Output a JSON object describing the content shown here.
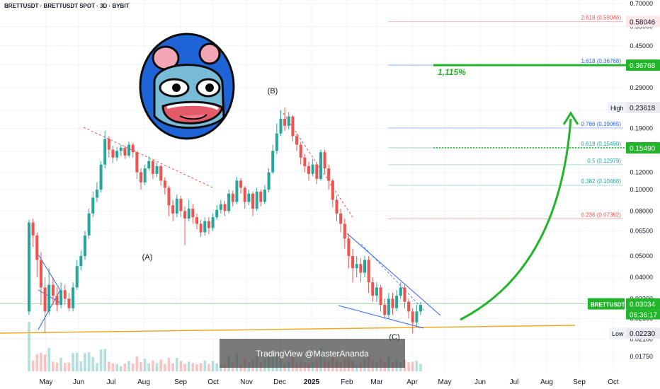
{
  "header": {
    "title": "BRETTUSDT · BRETTUSDT SPOT · 3D · BYBIT"
  },
  "watermark": "TradingView @MasterAnanda",
  "colors": {
    "up": "#26a69a",
    "down": "#ef5350",
    "arrow": "#22b42a",
    "support": "#f5a623",
    "channel": "#2962ff"
  },
  "chart_data": {
    "type": "candlestick",
    "y_scale": "log",
    "y_ticks": [
      "0.70000",
      "0.55000",
      "0.45000",
      "0.37000",
      "0.29000",
      "0.23000",
      "0.19000",
      "0.15000",
      "0.12000",
      "0.10000",
      "0.08000",
      "0.06500",
      "0.05000",
      "0.04000",
      "0.03200",
      "0.02600",
      "0.02100",
      "0.01750"
    ],
    "y_tick_values": [
      0.7,
      0.55,
      0.45,
      0.37,
      0.29,
      0.23,
      0.19,
      0.15,
      0.12,
      0.1,
      0.08,
      0.065,
      0.05,
      0.04,
      0.032,
      0.026,
      0.021,
      0.0175
    ],
    "x_ticks": [
      "May",
      "Jun",
      "Jul",
      "Aug",
      "Sep",
      "Oct",
      "Nov",
      "Dec",
      "2025",
      "Feb",
      "Mar",
      "Apr",
      "May",
      "Jun",
      "Jul",
      "Aug",
      "Sep",
      "Oct"
    ],
    "fib_levels": [
      {
        "label": "2.618 (0.58046)",
        "value": 0.58046,
        "color": "#ef5350"
      },
      {
        "label": "1.618 (0.36768)",
        "value": 0.36768,
        "color": "#2962ff"
      },
      {
        "label": "0.786 (0.19065)",
        "value": 0.19065,
        "color": "#2962ff"
      },
      {
        "label": "0.618 (0.15490)",
        "value": 0.1549,
        "color": "#26a69a"
      },
      {
        "label": "0.5 (0.12979)",
        "value": 0.12979,
        "color": "#26a69a"
      },
      {
        "label": "0.382 (0.10468)",
        "value": 0.10468,
        "color": "#26a69a"
      },
      {
        "label": "0.236 (0.07362)",
        "value": 0.07362,
        "color": "#ef5350"
      }
    ],
    "price_badges": [
      {
        "text": "0.58046",
        "value": 0.58046,
        "bg": "#fde7e9",
        "fg": "#131722"
      },
      {
        "text": "0.36768",
        "value": 0.36768,
        "bg": "#22b42a",
        "fg": "#ffffff"
      },
      {
        "text": "0.23618",
        "value": 0.23618,
        "bg": "#e8eaf0",
        "fg": "#131722"
      },
      {
        "text": "0.15490",
        "value": 0.1549,
        "bg": "#22b42a",
        "fg": "#ffffff"
      },
      {
        "text": "0.03034",
        "value": 0.03034,
        "bg": "#22b42a",
        "fg": "#ffffff"
      },
      {
        "text": "0.02230",
        "value": 0.0223,
        "bg": "#e8eaf0",
        "fg": "#131722"
      }
    ],
    "current": {
      "symbol": "BRETTUSDT",
      "price": "0.03034",
      "countdown": "06:36:17"
    },
    "high_label": "High",
    "low_label": "Low",
    "target_percent": "1,115%",
    "wave_labels": [
      "(A)",
      "(B)",
      "(C)"
    ],
    "candles": [
      [
        0.028,
        0.071,
        0.073,
        0.027
      ],
      [
        0.071,
        0.062,
        0.074,
        0.055
      ],
      [
        0.062,
        0.048,
        0.064,
        0.04
      ],
      [
        0.048,
        0.036,
        0.052,
        0.03
      ],
      [
        0.036,
        0.028,
        0.04,
        0.0223
      ],
      [
        0.028,
        0.037,
        0.044,
        0.027
      ],
      [
        0.037,
        0.033,
        0.04,
        0.03
      ],
      [
        0.033,
        0.03,
        0.036,
        0.028
      ],
      [
        0.03,
        0.035,
        0.038,
        0.029
      ],
      [
        0.035,
        0.032,
        0.037,
        0.03
      ],
      [
        0.032,
        0.029,
        0.034,
        0.028
      ],
      [
        0.029,
        0.036,
        0.038,
        0.028
      ],
      [
        0.036,
        0.045,
        0.048,
        0.035
      ],
      [
        0.045,
        0.05,
        0.053,
        0.043
      ],
      [
        0.05,
        0.062,
        0.065,
        0.048
      ],
      [
        0.062,
        0.078,
        0.082,
        0.06
      ],
      [
        0.078,
        0.092,
        0.098,
        0.075
      ],
      [
        0.092,
        0.1,
        0.108,
        0.088
      ],
      [
        0.1,
        0.13,
        0.135,
        0.097
      ],
      [
        0.13,
        0.17,
        0.185,
        0.125
      ],
      [
        0.17,
        0.152,
        0.175,
        0.14
      ],
      [
        0.152,
        0.14,
        0.158,
        0.132
      ],
      [
        0.14,
        0.15,
        0.156,
        0.135
      ],
      [
        0.15,
        0.155,
        0.16,
        0.142
      ],
      [
        0.155,
        0.143,
        0.158,
        0.138
      ],
      [
        0.143,
        0.16,
        0.165,
        0.14
      ],
      [
        0.16,
        0.148,
        0.163,
        0.14
      ],
      [
        0.148,
        0.12,
        0.15,
        0.112
      ],
      [
        0.12,
        0.108,
        0.125,
        0.1
      ],
      [
        0.108,
        0.125,
        0.13,
        0.105
      ],
      [
        0.125,
        0.135,
        0.142,
        0.122
      ],
      [
        0.135,
        0.118,
        0.138,
        0.112
      ],
      [
        0.118,
        0.128,
        0.132,
        0.114
      ],
      [
        0.128,
        0.11,
        0.13,
        0.104
      ],
      [
        0.11,
        0.102,
        0.114,
        0.095
      ],
      [
        0.102,
        0.085,
        0.104,
        0.076
      ],
      [
        0.085,
        0.078,
        0.09,
        0.072
      ],
      [
        0.078,
        0.091,
        0.095,
        0.075
      ],
      [
        0.091,
        0.08,
        0.094,
        0.075
      ],
      [
        0.08,
        0.074,
        0.084,
        0.056
      ],
      [
        0.074,
        0.082,
        0.09,
        0.072
      ],
      [
        0.082,
        0.075,
        0.086,
        0.07
      ],
      [
        0.075,
        0.07,
        0.078,
        0.066
      ],
      [
        0.07,
        0.064,
        0.073,
        0.061
      ],
      [
        0.064,
        0.072,
        0.075,
        0.062
      ],
      [
        0.072,
        0.067,
        0.075,
        0.063
      ],
      [
        0.067,
        0.075,
        0.078,
        0.065
      ],
      [
        0.075,
        0.081,
        0.085,
        0.073
      ],
      [
        0.081,
        0.086,
        0.09,
        0.078
      ],
      [
        0.086,
        0.08,
        0.089,
        0.076
      ],
      [
        0.08,
        0.096,
        0.1,
        0.078
      ],
      [
        0.096,
        0.088,
        0.099,
        0.084
      ],
      [
        0.088,
        0.11,
        0.114,
        0.086
      ],
      [
        0.11,
        0.102,
        0.113,
        0.096
      ],
      [
        0.102,
        0.088,
        0.104,
        0.082
      ],
      [
        0.088,
        0.096,
        0.1,
        0.085
      ],
      [
        0.096,
        0.082,
        0.098,
        0.076
      ],
      [
        0.082,
        0.098,
        0.102,
        0.08
      ],
      [
        0.098,
        0.088,
        0.1,
        0.084
      ],
      [
        0.088,
        0.1,
        0.105,
        0.086
      ],
      [
        0.1,
        0.12,
        0.125,
        0.097
      ],
      [
        0.12,
        0.15,
        0.16,
        0.118
      ],
      [
        0.15,
        0.18,
        0.2,
        0.145
      ],
      [
        0.18,
        0.21,
        0.23,
        0.175
      ],
      [
        0.21,
        0.195,
        0.236,
        0.185
      ],
      [
        0.195,
        0.215,
        0.225,
        0.188
      ],
      [
        0.215,
        0.175,
        0.218,
        0.165
      ],
      [
        0.175,
        0.16,
        0.18,
        0.15
      ],
      [
        0.16,
        0.14,
        0.165,
        0.13
      ],
      [
        0.14,
        0.128,
        0.145,
        0.12
      ],
      [
        0.128,
        0.118,
        0.134,
        0.11
      ],
      [
        0.118,
        0.13,
        0.138,
        0.115
      ],
      [
        0.13,
        0.112,
        0.134,
        0.106
      ],
      [
        0.112,
        0.148,
        0.152,
        0.11
      ],
      [
        0.148,
        0.125,
        0.152,
        0.118
      ],
      [
        0.125,
        0.11,
        0.13,
        0.1
      ],
      [
        0.11,
        0.09,
        0.112,
        0.083
      ],
      [
        0.09,
        0.078,
        0.094,
        0.072
      ],
      [
        0.078,
        0.07,
        0.082,
        0.064
      ],
      [
        0.07,
        0.06,
        0.074,
        0.054
      ],
      [
        0.06,
        0.05,
        0.063,
        0.044
      ],
      [
        0.05,
        0.044,
        0.054,
        0.038
      ],
      [
        0.044,
        0.046,
        0.05,
        0.04
      ],
      [
        0.046,
        0.042,
        0.049,
        0.038
      ],
      [
        0.042,
        0.048,
        0.05,
        0.04
      ],
      [
        0.048,
        0.038,
        0.05,
        0.034
      ],
      [
        0.038,
        0.033,
        0.04,
        0.031
      ],
      [
        0.033,
        0.036,
        0.038,
        0.031
      ],
      [
        0.036,
        0.03,
        0.037,
        0.028
      ],
      [
        0.03,
        0.027,
        0.032,
        0.026
      ],
      [
        0.027,
        0.032,
        0.034,
        0.026
      ],
      [
        0.032,
        0.029,
        0.034,
        0.027
      ],
      [
        0.029,
        0.033,
        0.035,
        0.028
      ],
      [
        0.033,
        0.036,
        0.038,
        0.032
      ],
      [
        0.036,
        0.031,
        0.037,
        0.029
      ],
      [
        0.031,
        0.028,
        0.032,
        0.026
      ],
      [
        0.028,
        0.025,
        0.029,
        0.0223
      ],
      [
        0.025,
        0.028,
        0.03,
        0.024
      ],
      [
        0.028,
        0.03,
        0.031,
        0.027
      ]
    ]
  }
}
